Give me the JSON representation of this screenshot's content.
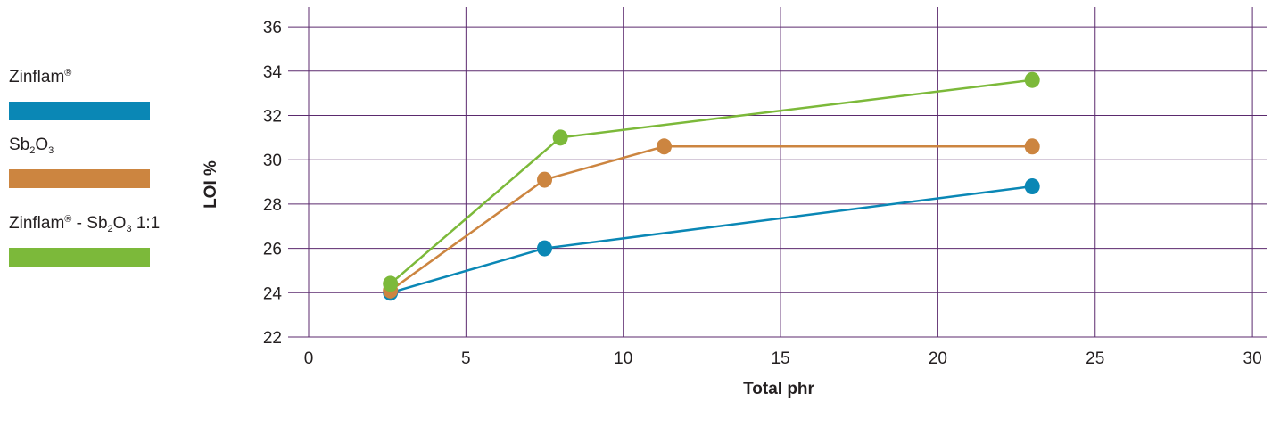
{
  "chart_data": {
    "type": "line",
    "xlabel": "Total phr",
    "ylabel": "LOI %",
    "xlim": [
      0,
      30
    ],
    "ylim": [
      22,
      36
    ],
    "x_ticks": [
      0,
      5,
      10,
      15,
      20,
      25,
      30
    ],
    "y_ticks": [
      22,
      24,
      26,
      28,
      30,
      32,
      34,
      36
    ],
    "grid": true,
    "legend_position": "left",
    "series": [
      {
        "name": "Zinflam® ",
        "color": "#0a87b5",
        "points": [
          {
            "x": 2.6,
            "y": 24.0
          },
          {
            "x": 7.5,
            "y": 26.0
          },
          {
            "x": 23.0,
            "y": 28.8
          }
        ]
      },
      {
        "name": "Sb2O3",
        "color": "#cc8540",
        "points": [
          {
            "x": 2.6,
            "y": 24.1
          },
          {
            "x": 7.5,
            "y": 29.1
          },
          {
            "x": 11.3,
            "y": 30.6
          },
          {
            "x": 23.0,
            "y": 30.6
          }
        ]
      },
      {
        "name": "Zinflam® - Sb2O3 1:1",
        "color": "#7cb93a",
        "points": [
          {
            "x": 2.6,
            "y": 24.4
          },
          {
            "x": 8.0,
            "y": 31.0
          },
          {
            "x": 23.0,
            "y": 33.6
          }
        ]
      }
    ]
  },
  "legend": {
    "items": [
      {
        "text": "Zinflam",
        "sup": "®",
        "color": "#0a87b5"
      },
      {
        "parts": [
          {
            "t": "Sb"
          },
          {
            "sub": "2"
          },
          {
            "t": "O"
          },
          {
            "sub": "3"
          }
        ],
        "color": "#cc8540"
      },
      {
        "parts": [
          {
            "t": "Zinflam"
          },
          {
            "sup": "®"
          },
          {
            "t": " - Sb"
          },
          {
            "sub": "2"
          },
          {
            "t": "O"
          },
          {
            "sub": "3"
          },
          {
            "t": " 1:1"
          }
        ],
        "color": "#7cb93a"
      }
    ]
  },
  "style": {
    "grid_color": "#5b2a6e",
    "text_color": "#231f20"
  }
}
